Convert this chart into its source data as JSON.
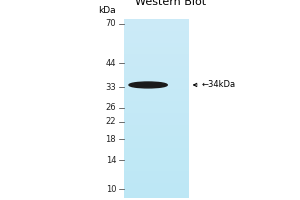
{
  "title": "Western Blot",
  "title_fontsize": 8,
  "kda_label": "kDa",
  "band_label": "←34kDa",
  "marker_positions": [
    70,
    44,
    33,
    26,
    22,
    18,
    14,
    10
  ],
  "band_kda": 34,
  "band_color": "#1a1a1a",
  "background_color": "#ffffff",
  "gel_color": "#9ecfdf",
  "tick_fontsize": 6,
  "label_fontsize": 6.5
}
